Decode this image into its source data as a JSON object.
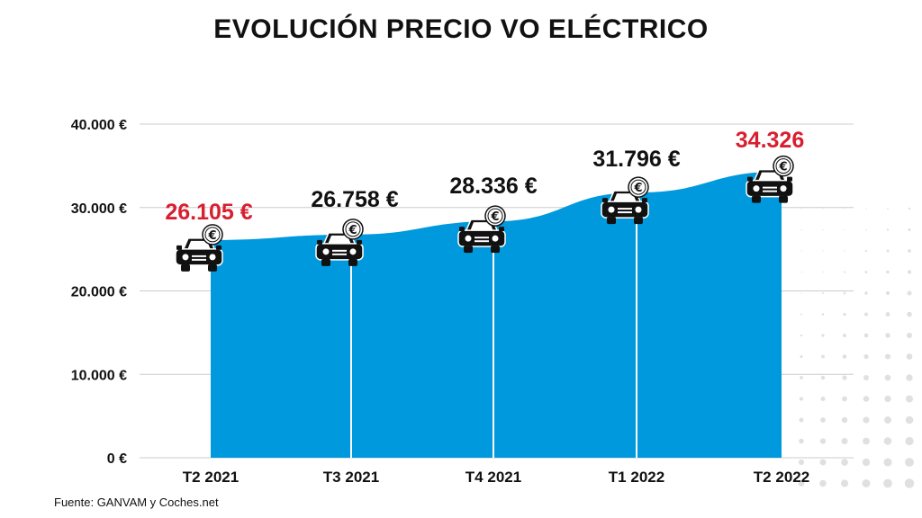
{
  "chart_data": {
    "type": "area",
    "title": "EVOLUCIÓN PRECIO VO ELÉCTRICO",
    "categories": [
      "T2 2021",
      "T3 2021",
      "T4 2021",
      "T1 2022",
      "T2 2022"
    ],
    "series": [
      {
        "values": [
          26105,
          26758,
          28336,
          31796,
          34326
        ]
      }
    ],
    "data_labels": [
      "26.105 €",
      "26.758 €",
      "28.336 €",
      "31.796 €",
      "34.326"
    ],
    "highlighted_labels": [
      0,
      4
    ],
    "y_ticks": [
      0,
      10000,
      20000,
      30000,
      40000
    ],
    "y_tick_labels": [
      "0 €",
      "10.000 €",
      "20.000 €",
      "30.000 €",
      "40.000 €"
    ],
    "ylim": [
      0,
      40000
    ],
    "xlabel": "",
    "ylabel": "",
    "grid": true,
    "legend": "none",
    "marker_icon": "car-euro-icon"
  },
  "source": "Fuente: GANVAM y Coches.net",
  "colors": {
    "area": "#0099dd",
    "highlight_label": "#d81f30",
    "label": "#111111",
    "grid": "#cccccc",
    "dots": "#e0e0e0"
  }
}
